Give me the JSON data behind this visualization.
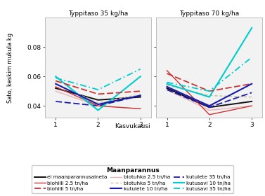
{
  "panel_titles": [
    "Typpitaso 35 kg/ha",
    "Typpitaso 70 kg/ha"
  ],
  "xlabel": "Kasvukausi",
  "ylabel": "Sato, keskim mukula kg",
  "legend_title": "Maanparannus",
  "x": [
    1,
    2,
    3
  ],
  "ylim": [
    0.032,
    0.1
  ],
  "yticks": [
    0.04,
    0.06,
    0.08
  ],
  "series": [
    {
      "label": "ei maanparannusaineta",
      "color": "#111111",
      "linestyle": "solid",
      "lw": 1.4,
      "dashes": null,
      "panel1": [
        0.052,
        0.044,
        0.046
      ],
      "panel2": [
        0.052,
        0.039,
        0.043
      ]
    },
    {
      "label": "biotuhka 2.5 tn/ha",
      "color": "#e8b4b8",
      "linestyle": "solid",
      "lw": 1.0,
      "dashes": null,
      "panel1": [
        0.05,
        0.04,
        0.038
      ],
      "panel2": [
        0.051,
        0.037,
        0.04
      ]
    },
    {
      "label": "kutulete 35 tn/ha",
      "color": "#1a1aaa",
      "linestyle": "dashed",
      "lw": 1.3,
      "dashes": [
        5,
        2
      ],
      "panel1": [
        0.043,
        0.04,
        0.047
      ],
      "panel2": [
        0.051,
        0.039,
        0.049
      ]
    },
    {
      "label": "biohiili 2.5 tn/ha",
      "color": "#cc3333",
      "linestyle": "solid",
      "lw": 1.0,
      "dashes": null,
      "panel1": [
        0.053,
        0.04,
        0.038
      ],
      "panel2": [
        0.064,
        0.034,
        0.04
      ]
    },
    {
      "label": "biotuhka 5 tn/ha",
      "color": "#c8c09a",
      "linestyle": "dashed",
      "lw": 1.0,
      "dashes": [
        3,
        2
      ],
      "panel1": [
        0.055,
        0.042,
        0.048
      ],
      "panel2": [
        0.054,
        0.047,
        0.046
      ]
    },
    {
      "label": "kutusavi 10 tn/ha",
      "color": "#00cccc",
      "linestyle": "solid",
      "lw": 1.5,
      "dashes": null,
      "panel1": [
        0.06,
        0.037,
        0.06
      ],
      "panel2": [
        0.055,
        0.046,
        0.093
      ]
    },
    {
      "label": "biohiili 5 tn/ha",
      "color": "#cc3333",
      "linestyle": "dashed",
      "lw": 1.3,
      "dashes": [
        5,
        2
      ],
      "panel1": [
        0.057,
        0.048,
        0.05
      ],
      "panel2": [
        0.062,
        0.05,
        0.055
      ]
    },
    {
      "label": "kutulete 10 tn/ha",
      "color": "#1a1aaa",
      "linestyle": "solid",
      "lw": 1.5,
      "dashes": null,
      "panel1": [
        0.055,
        0.041,
        0.047
      ],
      "panel2": [
        0.053,
        0.04,
        0.055
      ]
    },
    {
      "label": "kutusavi 35 tn/ha",
      "color": "#00cccc",
      "linestyle": "dashed",
      "lw": 1.3,
      "dashes": [
        5,
        2,
        1,
        2
      ],
      "panel1": [
        0.059,
        0.051,
        0.065
      ],
      "panel2": [
        0.056,
        0.05,
        0.073
      ]
    }
  ],
  "legend_entries": [
    {
      "label": "ei maanparannusaineta",
      "color": "#111111",
      "lw": 1.4,
      "dashes": null
    },
    {
      "label": "biohiili 2.5 tn/ha",
      "color": "#cc3333",
      "lw": 1.0,
      "dashes": null
    },
    {
      "label": "biohiili 5 tn/ha",
      "color": "#cc3333",
      "lw": 1.3,
      "dashes": [
        5,
        2
      ]
    },
    {
      "label": "biotuhka 2.5 tn/ha",
      "color": "#e8b4b8",
      "lw": 1.0,
      "dashes": null
    },
    {
      "label": "biotuhka 5 tn/ha",
      "color": "#c8c09a",
      "lw": 1.0,
      "dashes": [
        3,
        2
      ]
    },
    {
      "label": "kutulete 10 tn/ha",
      "color": "#1a1aaa",
      "lw": 1.5,
      "dashes": null
    },
    {
      "label": "kutulete 35 tn/ha",
      "color": "#1a1aaa",
      "lw": 1.3,
      "dashes": [
        5,
        2
      ]
    },
    {
      "label": "kutusavi 10 tn/ha",
      "color": "#00cccc",
      "lw": 1.5,
      "dashes": null
    },
    {
      "label": "kutusavi 35 tn/ha",
      "color": "#00cccc",
      "lw": 1.3,
      "dashes": [
        5,
        2,
        1,
        2
      ]
    }
  ],
  "background_color": "#ffffff",
  "panel_bg": "#f2f2f2"
}
